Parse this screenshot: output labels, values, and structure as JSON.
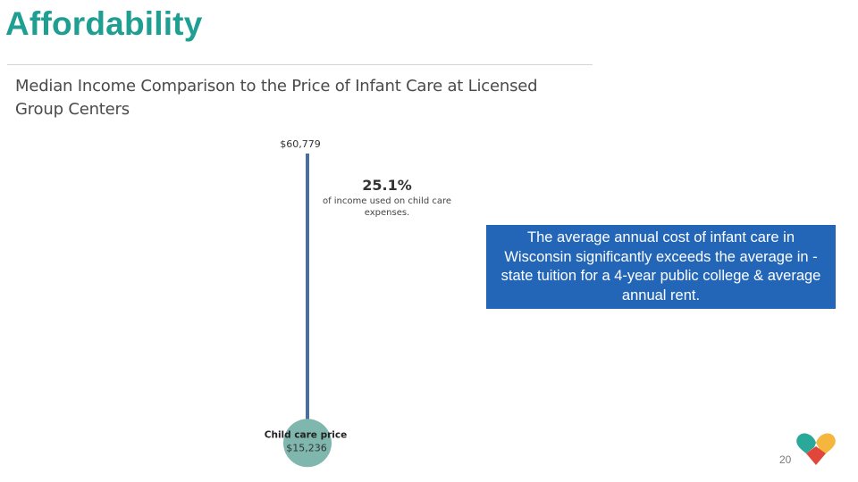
{
  "slide": {
    "title": "Affordability",
    "page_number": "20"
  },
  "callout": {
    "text": "The average annual cost of infant care in Wisconsin significantly exceeds the average in -state tuition for a 4-year public college & average annual rent."
  },
  "colors": {
    "title": "#1f9e92",
    "callout_bg": "#2366b8",
    "axis_line": "#4a6f9c",
    "child_care_circle": "#7fb7ae",
    "logo_teal": "#2aa89a",
    "logo_red": "#e0473a",
    "logo_yellow": "#f4b63d"
  },
  "logo": {
    "icon": "heart-logo-icon"
  },
  "chart_data": {
    "type": "dot-on-line",
    "title": "Median Income Comparison to the Price of Infant Care at Licensed Group Centers",
    "median_income": {
      "value": 60779,
      "label": "$60,779"
    },
    "child_care_price": {
      "label": "Child care price",
      "value": 15236,
      "value_label": "$15,236"
    },
    "ratio": {
      "percent_label": "25.1%",
      "percent": 25.1,
      "caption_line1": "of income used on child care",
      "caption_line2": "expenses."
    },
    "ylim": [
      0,
      60779
    ],
    "xlabel": "",
    "ylabel": ""
  }
}
